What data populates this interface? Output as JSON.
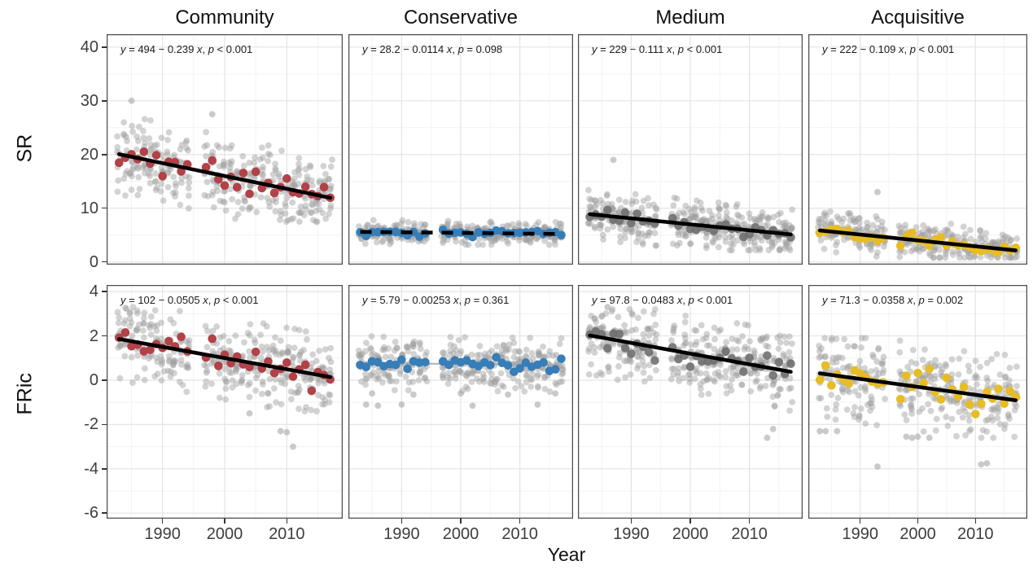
{
  "chart_data": {
    "type": "scatter",
    "title": "",
    "xlabel": "Year",
    "facets": {
      "rows": [
        "SR",
        "FRic"
      ],
      "cols": [
        "Community",
        "Conservative",
        "Medium",
        "Acquisitive"
      ]
    },
    "x": {
      "label": "Year",
      "range": [
        1981,
        2019
      ],
      "ticks": [
        1990,
        2000,
        2010
      ],
      "minor_ticks": [
        1985,
        1995,
        2005,
        2015
      ],
      "data_year_start": 1983,
      "data_year_end": 2017,
      "gap_years": [
        1995,
        1996
      ]
    },
    "row_axes": [
      {
        "label": "SR",
        "ylim": [
          -0.5,
          42.4
        ],
        "ticks": [
          40,
          30,
          20,
          10,
          0
        ],
        "minor": [
          35,
          25,
          15,
          5
        ]
      },
      {
        "label": "FRic",
        "ylim": [
          -6.25,
          4.3
        ],
        "ticks": [
          4,
          2,
          0,
          -2,
          -4,
          -6
        ],
        "minor": [
          3,
          1,
          -1,
          -3,
          -5
        ]
      }
    ],
    "colors": {
      "community_accent": "#B04248",
      "conservative_accent": "#377EB8",
      "medium_accent": "#6F6F6F",
      "acquisitive_accent": "#E7BC25",
      "gray_point": "#9E9E9E",
      "trend_line": "#000000",
      "nonsig_thin_line": "#A8A8A8",
      "grid_major": "#E4E4E4",
      "grid_minor": "#F3F3F3",
      "panel_border": "#4D4D4D",
      "text": "#111111"
    },
    "panels": [
      {
        "row": 0,
        "col": 0,
        "name": "SR-Community",
        "annotation": "y = 494 − 0.239 x, p < 0.001",
        "regression": {
          "intercept": 494,
          "slope": -0.239,
          "p": "< 0.001",
          "line_style": "solid"
        },
        "accent": "community_accent",
        "scatter": {
          "seed": 101,
          "points_per_year": 11,
          "sd": 3.4,
          "clip": [
            7.5,
            29.0
          ],
          "mean_sd": 1.1
        },
        "outliers": [
          [
            1985,
            30
          ],
          [
            1998,
            27.5
          ]
        ]
      },
      {
        "row": 0,
        "col": 1,
        "name": "SR-Conservative",
        "annotation": "y = 28.2 − 0.0114 x, p = 0.098",
        "regression": {
          "intercept": 28.2,
          "slope": -0.0114,
          "p": "= 0.098",
          "line_style": "dashed"
        },
        "accent": "conservative_accent",
        "scatter": {
          "seed": 102,
          "points_per_year": 10,
          "sd": 1.0,
          "clip": [
            3.2,
            8.8
          ],
          "mean_sd": 0.35
        },
        "outliers": []
      },
      {
        "row": 0,
        "col": 2,
        "name": "SR-Medium",
        "annotation": "y = 229 − 0.111 x, p < 0.001",
        "regression": {
          "intercept": 229,
          "slope": -0.111,
          "p": "< 0.001",
          "line_style": "solid"
        },
        "accent": "medium_accent",
        "scatter": {
          "seed": 103,
          "points_per_year": 11,
          "sd": 2.1,
          "clip": [
            2.2,
            14.8
          ],
          "mean_sd": 0.7
        },
        "outliers": [
          [
            1987,
            19
          ]
        ]
      },
      {
        "row": 0,
        "col": 3,
        "name": "SR-Acquisitive",
        "annotation": "y = 222 − 0.109 x, p < 0.001",
        "regression": {
          "intercept": 222,
          "slope": -0.109,
          "p": "< 0.001",
          "line_style": "solid"
        },
        "accent": "acquisitive_accent",
        "scatter": {
          "seed": 104,
          "points_per_year": 10,
          "sd": 1.7,
          "clip": [
            0.8,
            11.5
          ],
          "mean_sd": 0.6
        },
        "outliers": [
          [
            1993,
            13
          ]
        ]
      },
      {
        "row": 1,
        "col": 0,
        "name": "FRic-Community",
        "annotation": "y = 102 − 0.0505 x, p < 0.001",
        "regression": {
          "intercept": 102,
          "slope": -0.0505,
          "p": "< 0.001",
          "line_style": "solid"
        },
        "accent": "community_accent",
        "scatter": {
          "seed": 105,
          "points_per_year": 11,
          "sd": 0.85,
          "clip": [
            -1.4,
            3.3
          ],
          "mean_sd": 0.35
        },
        "outliers": [
          [
            2004,
            -1.5
          ],
          [
            2009,
            -2.3
          ],
          [
            2010,
            -2.35
          ],
          [
            2011,
            -3.0
          ]
        ]
      },
      {
        "row": 1,
        "col": 1,
        "name": "FRic-Conservative",
        "annotation": "y = 5.79 − 0.00253 x, p = 0.361",
        "regression": {
          "intercept": 5.79,
          "slope": -0.00253,
          "p": "= 0.361",
          "line_style": "thin-gray"
        },
        "accent": "conservative_accent",
        "scatter": {
          "seed": 106,
          "points_per_year": 10,
          "sd": 0.55,
          "clip": [
            -1.3,
            2.1
          ],
          "mean_sd": 0.15
        },
        "outliers": [
          [
            1984,
            -1.1
          ],
          [
            1986,
            -1.15
          ],
          [
            1990,
            -1.1
          ],
          [
            2002,
            -1.15
          ],
          [
            2013,
            -1.1
          ],
          [
            1985,
            -0.6
          ],
          [
            1992,
            -0.65
          ],
          [
            2000,
            -0.6
          ],
          [
            2008,
            -0.65
          ],
          [
            2016,
            -0.6
          ]
        ]
      },
      {
        "row": 1,
        "col": 2,
        "name": "FRic-Medium",
        "annotation": "y = 97.8 − 0.0483 x, p < 0.001",
        "regression": {
          "intercept": 97.8,
          "slope": -0.0483,
          "p": "< 0.001",
          "line_style": "solid"
        },
        "accent": "medium_accent",
        "scatter": {
          "seed": 107,
          "points_per_year": 11,
          "sd": 0.8,
          "clip": [
            -1.6,
            3.2
          ],
          "mean_sd": 0.3
        },
        "outliers": [
          [
            1986,
            3.3
          ],
          [
            2013,
            -2.6
          ],
          [
            2014,
            -2.2
          ]
        ]
      },
      {
        "row": 1,
        "col": 3,
        "name": "FRic-Acquisitive",
        "annotation": "y = 71.3 − 0.0358 x, p = 0.002",
        "regression": {
          "intercept": 71.3,
          "slope": -0.0358,
          "p": "= 0.002",
          "line_style": "solid"
        },
        "accent": "acquisitive_accent",
        "scatter": {
          "seed": 108,
          "points_per_year": 10,
          "sd": 0.9,
          "clip": [
            -2.6,
            1.9
          ],
          "mean_sd": 0.4
        },
        "outliers": [
          [
            1993,
            -3.9
          ],
          [
            2011,
            -3.8
          ],
          [
            2012,
            -3.75
          ],
          [
            1983,
            -2.3
          ],
          [
            1984,
            -2.3
          ],
          [
            1986,
            -2.3
          ],
          [
            1998,
            -2.55
          ],
          [
            1999,
            -2.6
          ],
          [
            2000,
            -2.55
          ],
          [
            2002,
            -2.6
          ]
        ]
      }
    ]
  }
}
